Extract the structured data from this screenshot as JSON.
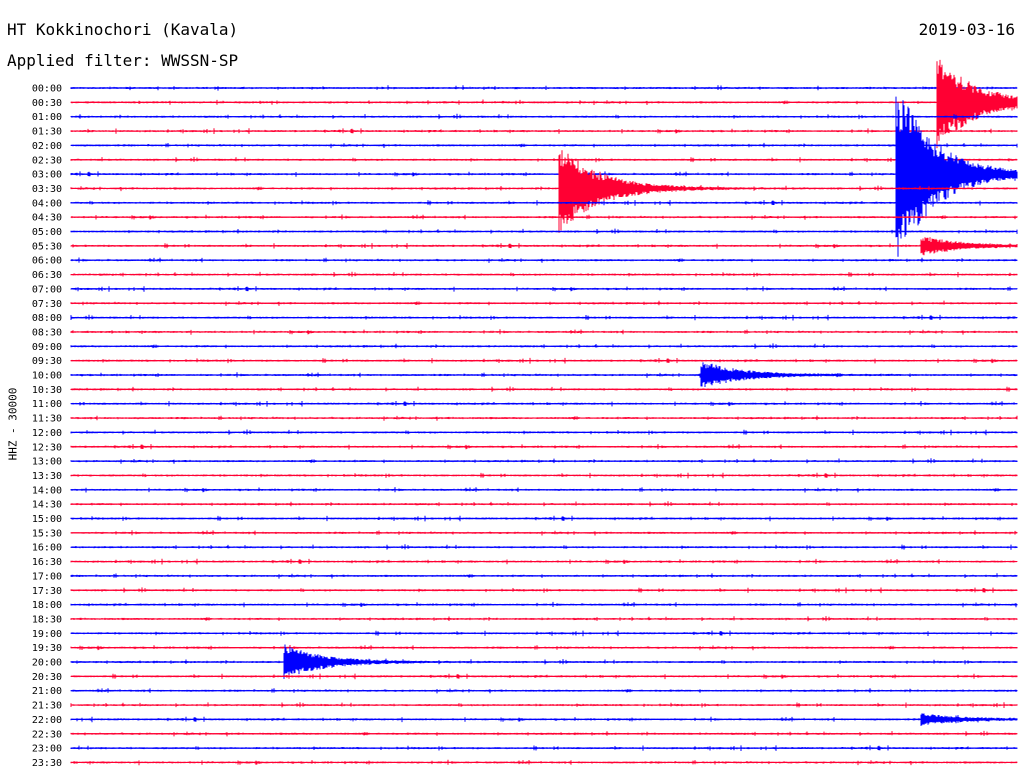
{
  "header": {
    "station": "HT Kokkinochori (Kavala)",
    "date": "2019-03-16",
    "filter": "Applied filter: WWSSN-SP"
  },
  "chart_data": {
    "type": "line",
    "title": "HT Kokkinochori (Kavala)",
    "ylabel": "HHZ - 30000",
    "xlabel": "",
    "row_labels": [
      "00:00",
      "00:30",
      "01:00",
      "01:30",
      "02:00",
      "02:30",
      "03:00",
      "03:30",
      "04:00",
      "04:30",
      "05:00",
      "05:30",
      "06:00",
      "06:30",
      "07:00",
      "07:30",
      "08:00",
      "08:30",
      "09:00",
      "09:30",
      "10:00",
      "10:30",
      "11:00",
      "11:30",
      "12:00",
      "12:30",
      "13:00",
      "13:30",
      "14:00",
      "14:30",
      "15:00",
      "15:30",
      "16:00",
      "16:30",
      "17:00",
      "17:30",
      "18:00",
      "18:30",
      "19:00",
      "19:30",
      "20:00",
      "20:30",
      "21:00",
      "21:30",
      "22:00",
      "22:30",
      "23:00",
      "23:30"
    ],
    "row_minutes": 30,
    "alternating_colors": [
      "#0000ff",
      "#ff0033"
    ],
    "events": [
      {
        "row": "00:30",
        "minute": 27.5,
        "amplitude": 5,
        "type": "quake"
      },
      {
        "row": "03:00",
        "minute": 26.2,
        "amplitude": 10,
        "type": "quake"
      },
      {
        "row": "03:30",
        "minute": 15.5,
        "amplitude": 5,
        "type": "quake"
      },
      {
        "row": "05:30",
        "minute": 27.0,
        "amplitude": 1,
        "type": "quake"
      },
      {
        "row": "10:00",
        "minute": 20.0,
        "amplitude": 1.5,
        "type": "quake"
      },
      {
        "row": "20:00",
        "minute": 6.8,
        "amplitude": 1.8,
        "type": "quake"
      },
      {
        "row": "22:00",
        "minute": 27.0,
        "amplitude": 0.6,
        "type": "quake"
      }
    ]
  }
}
